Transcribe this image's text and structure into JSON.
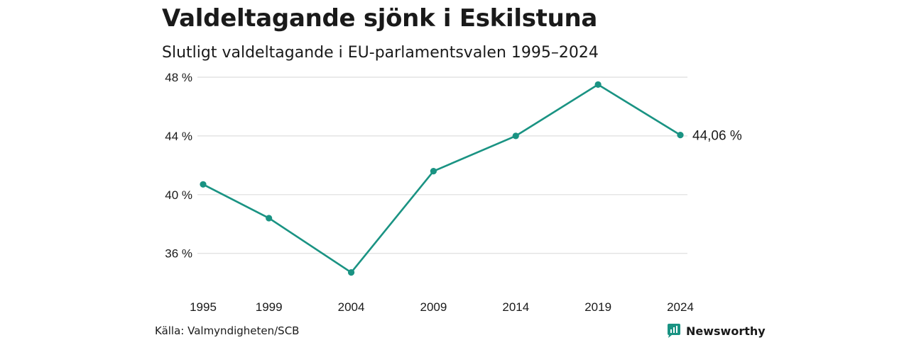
{
  "header": {
    "title": "Valdeltagande sjönk i Eskilstuna",
    "subtitle": "Slutligt valdeltagande i EU-parlamentsvalen 1995–2024"
  },
  "footer": {
    "source": "Källa: Valmyndigheten/SCB",
    "brand": "Newsworthy",
    "brand_icon": "newsworthy-logo-icon"
  },
  "colors": {
    "line": "#1a9383",
    "grid": "#dddddd",
    "brand": "#1a9383"
  },
  "chart_data": {
    "type": "line",
    "title": "Valdeltagande sjönk i Eskilstuna",
    "subtitle": "Slutligt valdeltagande i EU-parlamentsvalen 1995–2024",
    "x": [
      1995,
      1999,
      2004,
      2009,
      2014,
      2019,
      2024
    ],
    "x_tick_labels": [
      "1995",
      "1999",
      "2004",
      "2009",
      "2014",
      "2019",
      "2024"
    ],
    "series": [
      {
        "values": [
          40.7,
          38.4,
          34.7,
          41.6,
          44.0,
          47.5,
          44.06
        ]
      }
    ],
    "y_ticks": [
      36,
      40,
      44,
      48
    ],
    "y_tick_labels": [
      "36 %",
      "40 %",
      "44 %",
      "48 %"
    ],
    "ylim": [
      34.2,
      48
    ],
    "grid": true,
    "end_label": "44,06 %"
  }
}
